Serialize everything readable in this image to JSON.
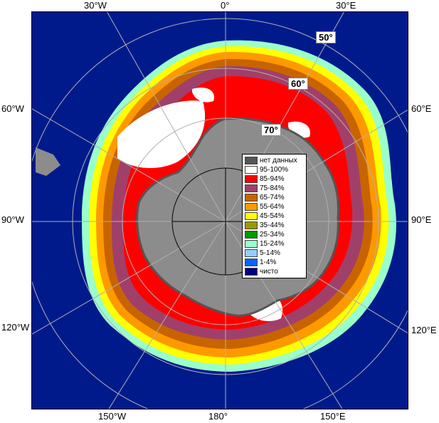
{
  "map": {
    "longitude_labels": {
      "top": [
        "30°W",
        "0°",
        "30°E"
      ],
      "left": [
        "60°W",
        "90°W",
        "120°W"
      ],
      "right": [
        "60°E",
        "90°E",
        "120°E"
      ],
      "bottom": [
        "150°W",
        "180°",
        "150°E"
      ]
    },
    "latitude_labels": [
      "50°",
      "60°",
      "70°"
    ],
    "colors": {
      "ocean": "#001a8c",
      "land": "#8c8c8c",
      "no_data": "#555555",
      "graticule": "#b0b0b0"
    }
  },
  "legend": {
    "items": [
      {
        "label": "нет данных",
        "color": "#555555"
      },
      {
        "label": "95-100%",
        "color": "#ffffff"
      },
      {
        "label": "85-94%",
        "color": "#ff0000"
      },
      {
        "label": "75-84%",
        "color": "#a0406a"
      },
      {
        "label": "65-74%",
        "color": "#c86400"
      },
      {
        "label": "55-64%",
        "color": "#ff9900"
      },
      {
        "label": "45-54%",
        "color": "#ffff00"
      },
      {
        "label": "35-44%",
        "color": "#9a9a00"
      },
      {
        "label": "25-34%",
        "color": "#009900"
      },
      {
        "label": "15-24%",
        "color": "#99ffcc"
      },
      {
        "label": "5-14%",
        "color": "#99ccff"
      },
      {
        "label": "1-4%",
        "color": "#0066ff"
      },
      {
        "label": "чисто",
        "color": "#000080"
      }
    ]
  }
}
